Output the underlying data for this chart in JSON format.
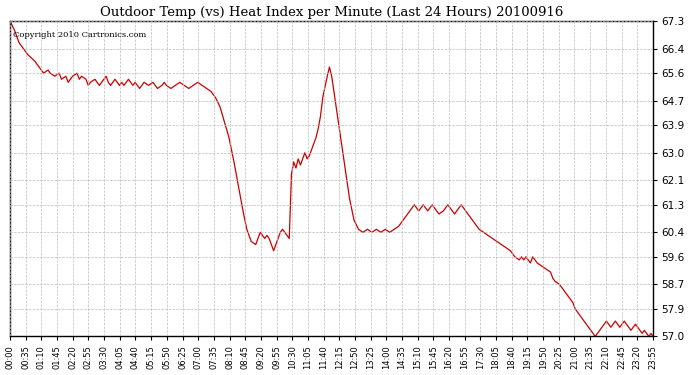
{
  "title": "Outdoor Temp (vs) Heat Index per Minute (Last 24 Hours) 20100916",
  "copyright_text": "Copyright 2010 Cartronics.com",
  "line_color": "#cc0000",
  "bg_color": "#ffffff",
  "grid_color": "#bbbbbb",
  "ylim": [
    57.0,
    67.3
  ],
  "yticks": [
    57.0,
    57.9,
    58.7,
    59.6,
    60.4,
    61.3,
    62.1,
    63.0,
    63.9,
    64.7,
    65.6,
    66.4,
    67.3
  ],
  "xtick_labels": [
    "00:00",
    "00:35",
    "01:10",
    "01:45",
    "02:20",
    "02:55",
    "03:30",
    "04:05",
    "04:40",
    "05:15",
    "05:50",
    "06:25",
    "07:00",
    "07:35",
    "08:10",
    "08:45",
    "09:20",
    "09:55",
    "10:30",
    "11:05",
    "11:40",
    "12:15",
    "12:50",
    "13:25",
    "14:00",
    "14:35",
    "15:10",
    "15:45",
    "16:20",
    "16:55",
    "17:30",
    "18:05",
    "18:40",
    "19:15",
    "19:50",
    "20:25",
    "21:00",
    "21:35",
    "22:10",
    "22:45",
    "23:20",
    "23:55"
  ],
  "data_keyframes": [
    [
      0,
      67.3
    ],
    [
      10,
      67.0
    ],
    [
      20,
      66.6
    ],
    [
      30,
      66.4
    ],
    [
      40,
      66.2
    ],
    [
      55,
      66.0
    ],
    [
      65,
      65.8
    ],
    [
      75,
      65.6
    ],
    [
      85,
      65.7
    ],
    [
      90,
      65.6
    ],
    [
      100,
      65.5
    ],
    [
      110,
      65.6
    ],
    [
      115,
      65.4
    ],
    [
      125,
      65.5
    ],
    [
      130,
      65.3
    ],
    [
      140,
      65.5
    ],
    [
      150,
      65.6
    ],
    [
      155,
      65.4
    ],
    [
      160,
      65.5
    ],
    [
      170,
      65.4
    ],
    [
      175,
      65.2
    ],
    [
      180,
      65.3
    ],
    [
      190,
      65.4
    ],
    [
      195,
      65.3
    ],
    [
      200,
      65.2
    ],
    [
      210,
      65.4
    ],
    [
      215,
      65.5
    ],
    [
      220,
      65.3
    ],
    [
      225,
      65.2
    ],
    [
      230,
      65.3
    ],
    [
      235,
      65.4
    ],
    [
      240,
      65.3
    ],
    [
      245,
      65.2
    ],
    [
      250,
      65.3
    ],
    [
      255,
      65.2
    ],
    [
      260,
      65.3
    ],
    [
      265,
      65.4
    ],
    [
      270,
      65.3
    ],
    [
      275,
      65.2
    ],
    [
      280,
      65.3
    ],
    [
      285,
      65.2
    ],
    [
      290,
      65.1
    ],
    [
      295,
      65.2
    ],
    [
      300,
      65.3
    ],
    [
      310,
      65.2
    ],
    [
      320,
      65.3
    ],
    [
      325,
      65.2
    ],
    [
      330,
      65.1
    ],
    [
      340,
      65.2
    ],
    [
      345,
      65.3
    ],
    [
      350,
      65.2
    ],
    [
      360,
      65.1
    ],
    [
      370,
      65.2
    ],
    [
      380,
      65.3
    ],
    [
      390,
      65.2
    ],
    [
      400,
      65.1
    ],
    [
      410,
      65.2
    ],
    [
      420,
      65.3
    ],
    [
      430,
      65.2
    ],
    [
      440,
      65.1
    ],
    [
      450,
      65.0
    ],
    [
      460,
      64.8
    ],
    [
      470,
      64.5
    ],
    [
      480,
      64.0
    ],
    [
      490,
      63.5
    ],
    [
      500,
      62.8
    ],
    [
      510,
      62.0
    ],
    [
      520,
      61.2
    ],
    [
      530,
      60.5
    ],
    [
      540,
      60.1
    ],
    [
      550,
      60.0
    ],
    [
      555,
      60.2
    ],
    [
      560,
      60.4
    ],
    [
      565,
      60.3
    ],
    [
      570,
      60.2
    ],
    [
      575,
      60.3
    ],
    [
      580,
      60.2
    ],
    [
      585,
      60.0
    ],
    [
      590,
      59.8
    ],
    [
      595,
      60.0
    ],
    [
      600,
      60.2
    ],
    [
      605,
      60.4
    ],
    [
      610,
      60.5
    ],
    [
      615,
      60.4
    ],
    [
      620,
      60.3
    ],
    [
      625,
      60.2
    ],
    [
      630,
      62.3
    ],
    [
      635,
      62.7
    ],
    [
      640,
      62.5
    ],
    [
      645,
      62.8
    ],
    [
      650,
      62.6
    ],
    [
      655,
      62.8
    ],
    [
      660,
      63.0
    ],
    [
      665,
      62.8
    ],
    [
      670,
      62.9
    ],
    [
      675,
      63.1
    ],
    [
      680,
      63.3
    ],
    [
      685,
      63.5
    ],
    [
      690,
      63.8
    ],
    [
      695,
      64.2
    ],
    [
      700,
      64.8
    ],
    [
      710,
      65.5
    ],
    [
      715,
      65.8
    ],
    [
      720,
      65.5
    ],
    [
      730,
      64.5
    ],
    [
      740,
      63.5
    ],
    [
      750,
      62.5
    ],
    [
      760,
      61.5
    ],
    [
      770,
      60.8
    ],
    [
      780,
      60.5
    ],
    [
      790,
      60.4
    ],
    [
      800,
      60.5
    ],
    [
      810,
      60.4
    ],
    [
      820,
      60.5
    ],
    [
      830,
      60.4
    ],
    [
      840,
      60.5
    ],
    [
      850,
      60.4
    ],
    [
      860,
      60.5
    ],
    [
      870,
      60.6
    ],
    [
      875,
      60.7
    ],
    [
      880,
      60.8
    ],
    [
      885,
      60.9
    ],
    [
      890,
      61.0
    ],
    [
      895,
      61.1
    ],
    [
      900,
      61.2
    ],
    [
      905,
      61.3
    ],
    [
      910,
      61.2
    ],
    [
      915,
      61.1
    ],
    [
      920,
      61.2
    ],
    [
      925,
      61.3
    ],
    [
      930,
      61.2
    ],
    [
      935,
      61.1
    ],
    [
      940,
      61.2
    ],
    [
      945,
      61.3
    ],
    [
      950,
      61.2
    ],
    [
      955,
      61.1
    ],
    [
      960,
      61.0
    ],
    [
      970,
      61.1
    ],
    [
      975,
      61.2
    ],
    [
      980,
      61.3
    ],
    [
      985,
      61.2
    ],
    [
      990,
      61.1
    ],
    [
      995,
      61.0
    ],
    [
      1000,
      61.1
    ],
    [
      1005,
      61.2
    ],
    [
      1010,
      61.3
    ],
    [
      1015,
      61.2
    ],
    [
      1020,
      61.1
    ],
    [
      1025,
      61.0
    ],
    [
      1030,
      60.9
    ],
    [
      1035,
      60.8
    ],
    [
      1040,
      60.7
    ],
    [
      1045,
      60.6
    ],
    [
      1050,
      60.5
    ],
    [
      1060,
      60.4
    ],
    [
      1070,
      60.3
    ],
    [
      1080,
      60.2
    ],
    [
      1090,
      60.1
    ],
    [
      1100,
      60.0
    ],
    [
      1110,
      59.9
    ],
    [
      1120,
      59.8
    ],
    [
      1125,
      59.7
    ],
    [
      1130,
      59.6
    ],
    [
      1140,
      59.5
    ],
    [
      1145,
      59.6
    ],
    [
      1150,
      59.5
    ],
    [
      1155,
      59.6
    ],
    [
      1160,
      59.5
    ],
    [
      1165,
      59.4
    ],
    [
      1170,
      59.6
    ],
    [
      1175,
      59.5
    ],
    [
      1180,
      59.4
    ],
    [
      1190,
      59.3
    ],
    [
      1200,
      59.2
    ],
    [
      1210,
      59.1
    ],
    [
      1215,
      58.9
    ],
    [
      1220,
      58.8
    ],
    [
      1230,
      58.7
    ],
    [
      1235,
      58.6
    ],
    [
      1240,
      58.5
    ],
    [
      1245,
      58.4
    ],
    [
      1250,
      58.3
    ],
    [
      1260,
      58.1
    ],
    [
      1265,
      57.9
    ],
    [
      1270,
      57.8
    ],
    [
      1275,
      57.7
    ],
    [
      1280,
      57.6
    ],
    [
      1285,
      57.5
    ],
    [
      1290,
      57.4
    ],
    [
      1295,
      57.3
    ],
    [
      1300,
      57.2
    ],
    [
      1305,
      57.1
    ],
    [
      1310,
      57.0
    ],
    [
      1315,
      57.1
    ],
    [
      1320,
      57.2
    ],
    [
      1325,
      57.3
    ],
    [
      1330,
      57.4
    ],
    [
      1335,
      57.5
    ],
    [
      1340,
      57.4
    ],
    [
      1345,
      57.3
    ],
    [
      1350,
      57.4
    ],
    [
      1355,
      57.5
    ],
    [
      1360,
      57.4
    ],
    [
      1365,
      57.3
    ],
    [
      1370,
      57.4
    ],
    [
      1375,
      57.5
    ],
    [
      1380,
      57.4
    ],
    [
      1385,
      57.3
    ],
    [
      1390,
      57.2
    ],
    [
      1395,
      57.3
    ],
    [
      1400,
      57.4
    ],
    [
      1405,
      57.3
    ],
    [
      1410,
      57.2
    ],
    [
      1415,
      57.1
    ],
    [
      1420,
      57.2
    ],
    [
      1425,
      57.1
    ],
    [
      1430,
      57.0
    ],
    [
      1435,
      57.1
    ],
    [
      1439,
      57.0
    ]
  ]
}
